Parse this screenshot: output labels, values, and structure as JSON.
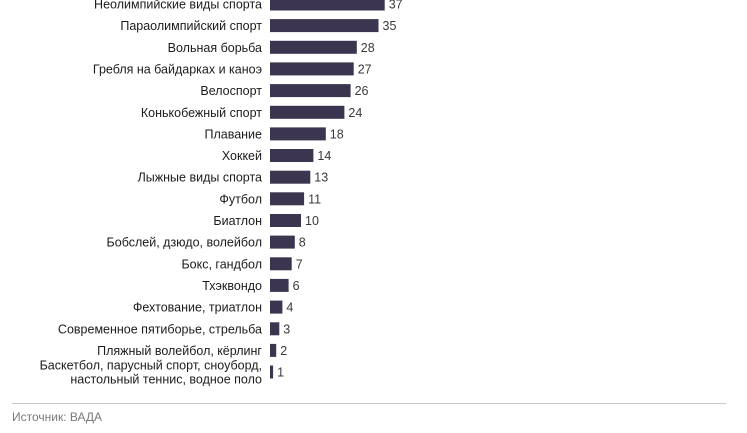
{
  "chart_data": {
    "type": "bar",
    "orientation": "horizontal",
    "categories": [
      "Неолимпийские виды спорта",
      "Параолимпийский спорт",
      "Вольная борьба",
      "Гребля на байдарках и каноэ",
      "Велоспорт",
      "Конькобежный спорт",
      "Плавание",
      "Хоккей",
      "Лыжные виды спорта",
      "Футбол",
      "Биатлон",
      "Бобслей, дзюдо, волейбол",
      "Бокс, гандбол",
      "Тхэквондо",
      "Фехтование, триатлон",
      "Современное пятиборье, стрельба",
      "Пляжный волейбол, кёрлинг",
      "Баскетбол, парусный спорт, сноуборд,\nнастольный теннис, водное поло"
    ],
    "values": [
      37,
      35,
      28,
      27,
      26,
      24,
      18,
      14,
      13,
      11,
      10,
      8,
      7,
      6,
      4,
      3,
      2,
      1
    ],
    "bar_color": "#3b3550",
    "grid": false,
    "legend": "none"
  },
  "footer": {
    "source": "Источник: ВАДА"
  }
}
